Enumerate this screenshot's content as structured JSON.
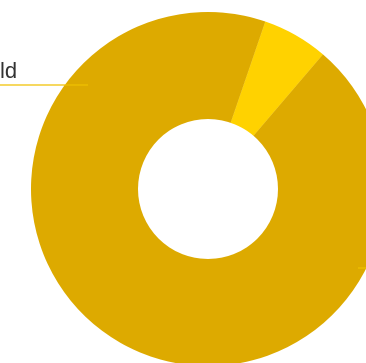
{
  "chart_data": {
    "type": "pie",
    "donut": true,
    "slices": [
      {
        "label": "old",
        "value": 6,
        "color": "#FFD200"
      },
      {
        "label": "",
        "value": 94,
        "color": "#DDAA00"
      }
    ],
    "visible_label_fragment": "ld",
    "colors": {
      "leader_line": "#F0C000",
      "label_text": "#333333",
      "hole": "#ffffff"
    }
  }
}
